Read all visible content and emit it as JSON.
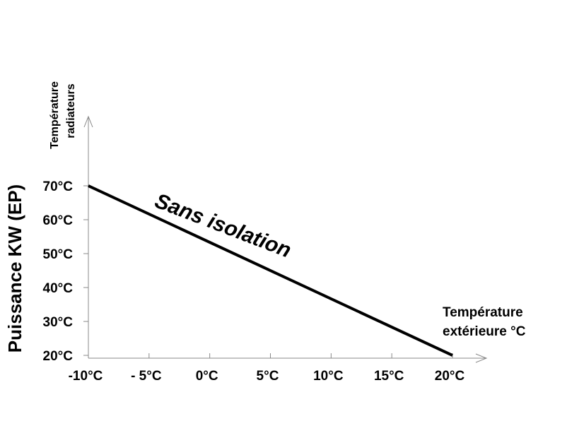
{
  "chart_data": {
    "type": "line",
    "title": "",
    "annotation": "Sans isolation",
    "ylabel": "Puissance KW (EP)",
    "y_axis_title_lines": [
      "Température",
      "radiateurs"
    ],
    "x_axis_title_lines": [
      "Température",
      "extérieure °C"
    ],
    "x_tick_labels": [
      "-10°C",
      "- 5°C",
      "0°C",
      "5°C",
      "10°C",
      "15°C",
      "20°C"
    ],
    "x_ticks": [
      -10,
      -5,
      0,
      5,
      10,
      15,
      20
    ],
    "y_tick_labels": [
      "70°C",
      "60°C",
      "50°C",
      "40°C",
      "30°C",
      "20°C"
    ],
    "y_ticks": [
      70,
      60,
      50,
      40,
      30,
      20
    ],
    "xlim": [
      -10,
      20
    ],
    "ylim": [
      20,
      70
    ],
    "grid": false,
    "series": [
      {
        "x": [
          -10,
          20
        ],
        "y": [
          70,
          20
        ],
        "color": "#000000"
      }
    ]
  }
}
